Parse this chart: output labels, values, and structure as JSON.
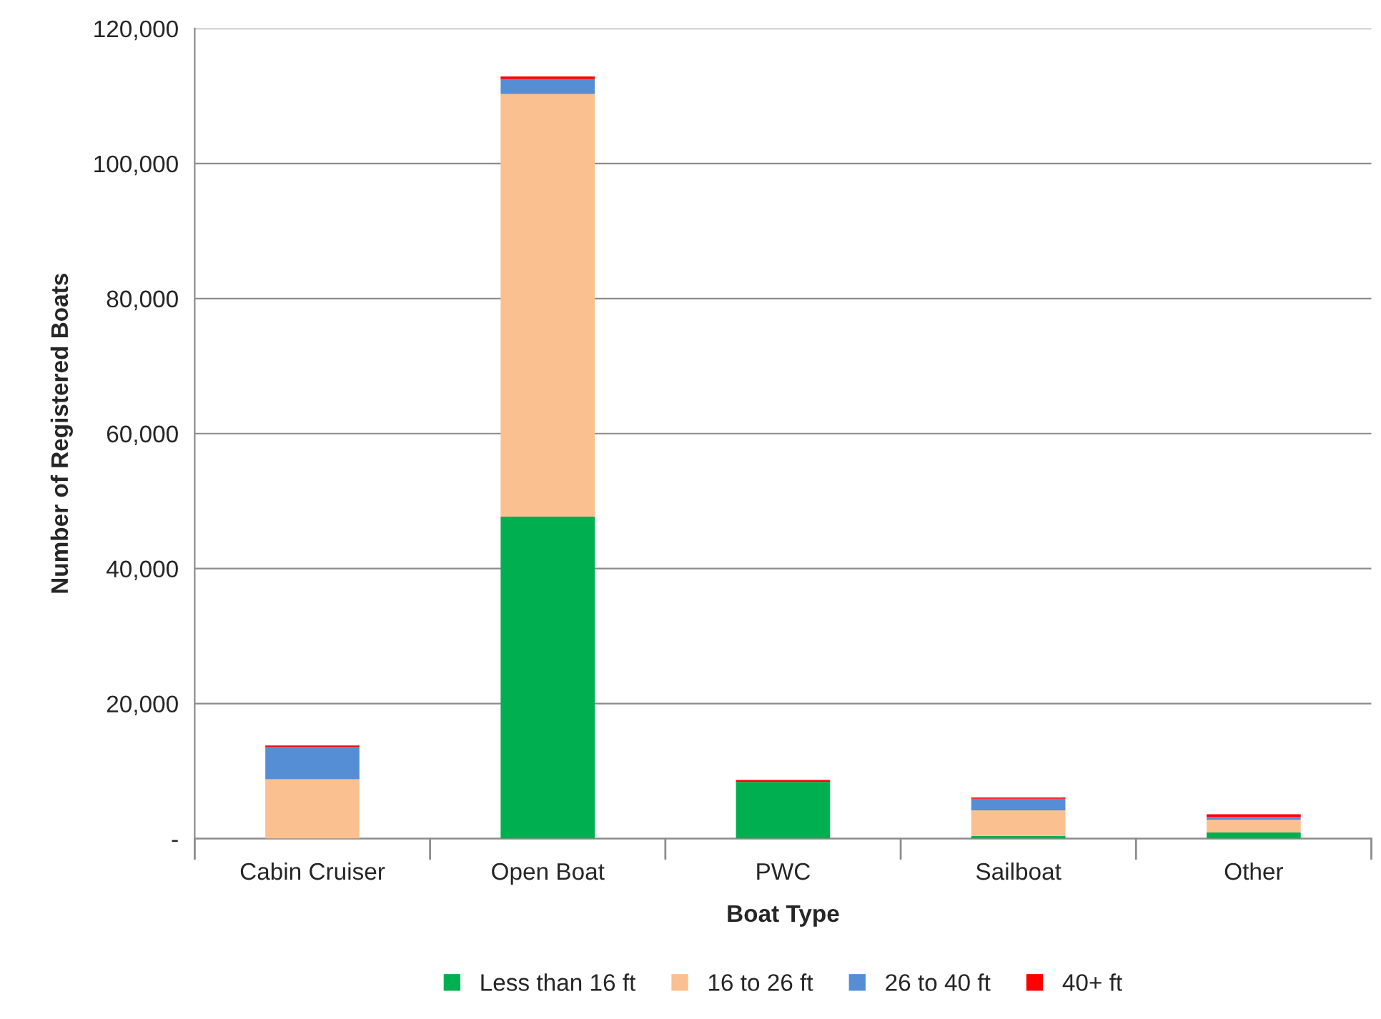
{
  "chart_data": {
    "type": "bar",
    "stacked": true,
    "xlabel": "Boat Type",
    "ylabel": "Number of Registered Boats",
    "categories": [
      "Cabin Cruiser",
      "Open Boat",
      "PWC",
      "Sailboat",
      "Other"
    ],
    "series": [
      {
        "name": "Less than 16 ft",
        "color": "#00b050",
        "values": [
          null,
          47700,
          8400,
          400,
          900
        ]
      },
      {
        "name": "16 to 26 ft",
        "color": "#fac090",
        "values": [
          8800,
          62600,
          null,
          3800,
          1900
        ]
      },
      {
        "name": "26 to 40 ft",
        "color": "#558ed5",
        "values": [
          4800,
          2200,
          null,
          1700,
          400
        ]
      },
      {
        "name": "40+ ft",
        "color": "#ff0000",
        "values": [
          200,
          400,
          300,
          200,
          400
        ]
      }
    ],
    "ylim": [
      0,
      120000
    ],
    "yticks": [
      {
        "value": 0,
        "label": "-"
      },
      {
        "value": 20000,
        "label": "20,000"
      },
      {
        "value": 40000,
        "label": "40,000"
      },
      {
        "value": 60000,
        "label": "60,000"
      },
      {
        "value": 80000,
        "label": "80,000"
      },
      {
        "value": 100000,
        "label": "100,000"
      },
      {
        "value": 120000,
        "label": "120,000"
      }
    ],
    "grid": "y",
    "legend": "bottom"
  }
}
